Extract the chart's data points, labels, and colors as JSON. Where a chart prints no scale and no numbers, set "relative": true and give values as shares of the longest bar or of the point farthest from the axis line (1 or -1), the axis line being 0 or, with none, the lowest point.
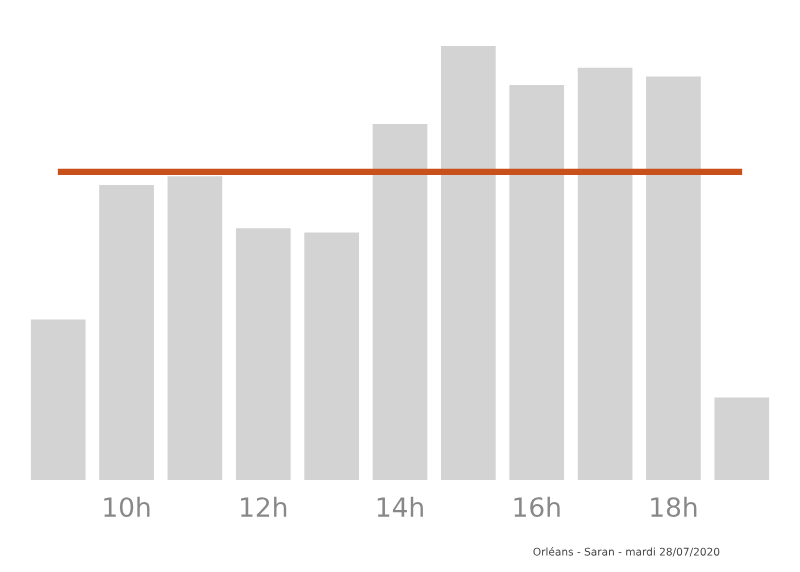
{
  "chart_data": {
    "type": "bar",
    "relative": true,
    "categories": [
      null,
      "10h",
      null,
      "12h",
      null,
      "14h",
      null,
      "16h",
      null,
      "18h",
      null
    ],
    "values": [
      0.37,
      0.68,
      0.7,
      0.58,
      0.57,
      0.82,
      1,
      0.91,
      0.95,
      0.93,
      0.19
    ],
    "color": "#d3d3d3",
    "ref_lines": [
      {
        "axis": "y",
        "value": 0.71,
        "color": "#c8501a"
      }
    ],
    "annotations": [
      "Orléans - Saran - mardi 28/07/2020"
    ],
    "grid": false,
    "legend": false
  }
}
